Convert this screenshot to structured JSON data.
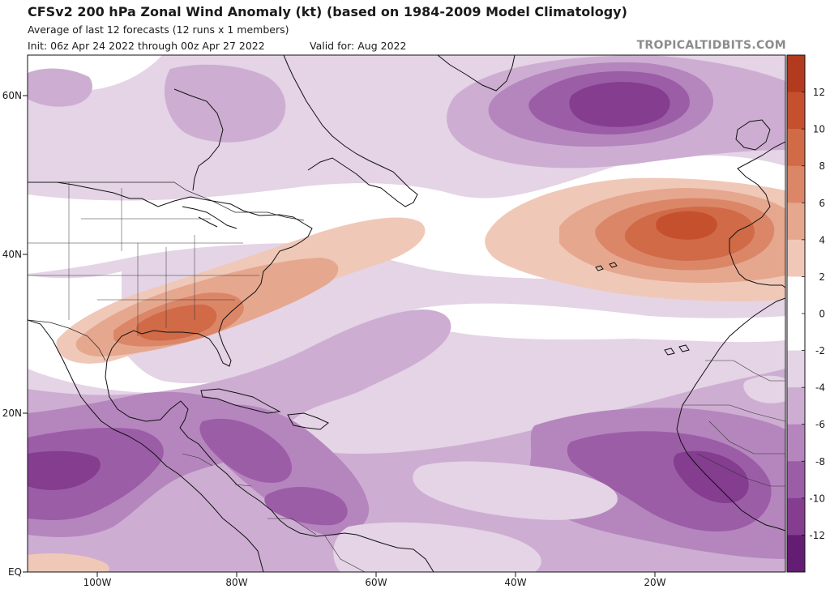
{
  "header": {
    "title": "CFSv2 200 hPa Zonal Wind Anomaly (kt) (based on 1984-2009 Model Climatology)",
    "subtitle": "Average of last 12 forecasts (12 runs x 1 members)",
    "init": "Init: 06z Apr 24 2022 through 00z Apr 27 2022",
    "valid": "Valid for: Aug 2022",
    "brand": "TROPICALTIDBITS.COM"
  },
  "map": {
    "lat_labels": [
      "60N",
      "40N",
      "20N",
      "EQ"
    ],
    "lon_labels": [
      "100W",
      "80W",
      "60W",
      "40W",
      "20W"
    ]
  },
  "colorbar": {
    "tick_labels": [
      "12",
      "10",
      "8",
      "6",
      "4",
      "2",
      "0",
      "-2",
      "-4",
      "-6",
      "-8",
      "-10",
      "-12"
    ],
    "levels": [
      {
        "range": "12+",
        "color": "#b23a1f"
      },
      {
        "range": "10 to 12",
        "color": "#c4502e"
      },
      {
        "range": "8 to 10",
        "color": "#d06a47"
      },
      {
        "range": "6 to 8",
        "color": "#dc8668"
      },
      {
        "range": "4 to 6",
        "color": "#e6a78f"
      },
      {
        "range": "2 to 4",
        "color": "#f0c8b8"
      },
      {
        "range": "0 to 2",
        "color": "#ffffff"
      },
      {
        "range": "-2 to 0",
        "color": "#ffffff"
      },
      {
        "range": "-4 to -2",
        "color": "#e4d4e6"
      },
      {
        "range": "-6 to -4",
        "color": "#cdaed2"
      },
      {
        "range": "-8 to -6",
        "color": "#b586bd"
      },
      {
        "range": "-10 to -8",
        "color": "#9c5da7"
      },
      {
        "range": "-12 to -10",
        "color": "#853d90"
      },
      {
        "range": "-12-",
        "color": "#651c73"
      }
    ]
  }
}
